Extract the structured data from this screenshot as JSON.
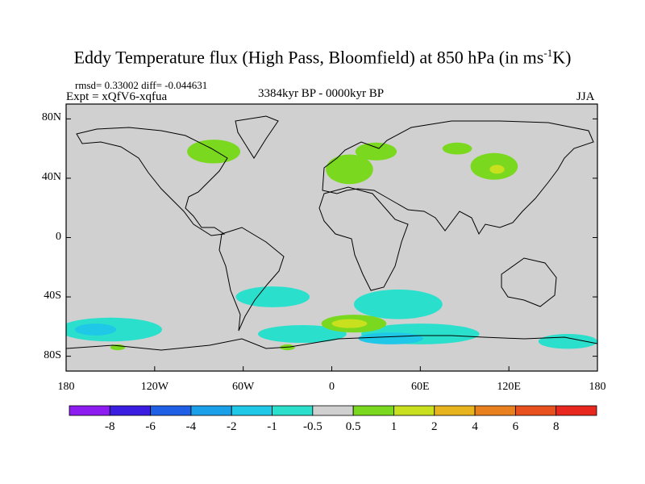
{
  "title_main": "Eddy Temperature flux (High Pass, Bloomfield) at 850 hPa (in ms",
  "title_sup": "-1",
  "title_end": "K)",
  "stats": "rmsd= 0.33002 diff= -0.044631",
  "experiment": "Expt = xQfV6-xqfua",
  "period": "3384kyr BP - 0000kyr BP",
  "season": "JJA",
  "map": {
    "lat_ticks": [
      "80N",
      "40N",
      "0",
      "40S",
      "80S"
    ],
    "lat_values": [
      80,
      40,
      0,
      -40,
      -80
    ],
    "lon_ticks": [
      "180",
      "120W",
      "60W",
      "0",
      "60E",
      "120E",
      "180"
    ],
    "lon_values": [
      -180,
      -120,
      -60,
      0,
      60,
      120,
      180
    ],
    "lat_range": [
      -90,
      90
    ],
    "lon_range": [
      -180,
      180
    ],
    "background_color": "#d0d0d0",
    "coastline_color": "#000000"
  },
  "colorbar": {
    "labels": [
      "-8",
      "-6",
      "-4",
      "-2",
      "-1",
      "-0.5",
      "0.5",
      "1",
      "2",
      "4",
      "6",
      "8"
    ],
    "colors": [
      "#8c1cf0",
      "#3a1de0",
      "#1e5fe6",
      "#1aa0e8",
      "#1ec8e6",
      "#2ae0cc",
      "#d0d0d0",
      "#7ad81e",
      "#c8e01e",
      "#e8b41e",
      "#e8801e",
      "#e8501e",
      "#e8281e"
    ]
  },
  "regions": [
    {
      "level": "0.5 to 1",
      "color": "#7ad81e",
      "lon": -80,
      "lat": 58,
      "rlon": 18,
      "rlat": 8
    },
    {
      "level": "0.5 to 1",
      "color": "#7ad81e",
      "lon": 12,
      "lat": 46,
      "rlon": 16,
      "rlat": 10
    },
    {
      "level": "0.5 to 1",
      "color": "#7ad81e",
      "lon": 30,
      "lat": 58,
      "rlon": 14,
      "rlat": 6
    },
    {
      "level": "0.5 to 1",
      "color": "#7ad81e",
      "lon": 110,
      "lat": 48,
      "rlon": 16,
      "rlat": 9
    },
    {
      "level": "0.5 to 1",
      "color": "#7ad81e",
      "lon": 85,
      "lat": 60,
      "rlon": 10,
      "rlat": 4
    },
    {
      "level": "1 to 2",
      "color": "#c8e01e",
      "lon": 112,
      "lat": 46,
      "rlon": 5,
      "rlat": 3
    },
    {
      "level": "-1 to -0.5",
      "color": "#2ae0cc",
      "lon": -40,
      "lat": -40,
      "rlon": 25,
      "rlat": 7
    },
    {
      "level": "-1 to -0.5",
      "color": "#2ae0cc",
      "lon": 45,
      "lat": -45,
      "rlon": 30,
      "rlat": 10
    },
    {
      "level": "-1 to -0.5",
      "color": "#2ae0cc",
      "lon": -150,
      "lat": -62,
      "rlon": 35,
      "rlat": 8
    },
    {
      "level": "-1 to -0.5",
      "color": "#2ae0cc",
      "lon": -20,
      "lat": -65,
      "rlon": 30,
      "rlat": 6
    },
    {
      "level": "-1 to -0.5",
      "color": "#2ae0cc",
      "lon": 60,
      "lat": -65,
      "rlon": 40,
      "rlat": 7
    },
    {
      "level": "-1 to -0.5",
      "color": "#2ae0cc",
      "lon": 160,
      "lat": -70,
      "rlon": 20,
      "rlat": 5
    },
    {
      "level": "-2 to -1",
      "color": "#1ec8e6",
      "lon": -160,
      "lat": -62,
      "rlon": 14,
      "rlat": 4
    },
    {
      "level": "-2 to -1",
      "color": "#1ec8e6",
      "lon": 40,
      "lat": -68,
      "rlon": 22,
      "rlat": 4
    },
    {
      "level": "0.5 to 1",
      "color": "#7ad81e",
      "lon": 15,
      "lat": -58,
      "rlon": 22,
      "rlat": 6
    },
    {
      "level": "1 to 2",
      "color": "#c8e01e",
      "lon": 12,
      "lat": -58,
      "rlon": 12,
      "rlat": 3
    },
    {
      "level": "0.5 to 1",
      "color": "#7ad81e",
      "lon": -145,
      "lat": -74,
      "rlon": 5,
      "rlat": 2
    },
    {
      "level": "0.5 to 1",
      "color": "#7ad81e",
      "lon": -30,
      "lat": -74,
      "rlon": 5,
      "rlat": 2
    }
  ]
}
